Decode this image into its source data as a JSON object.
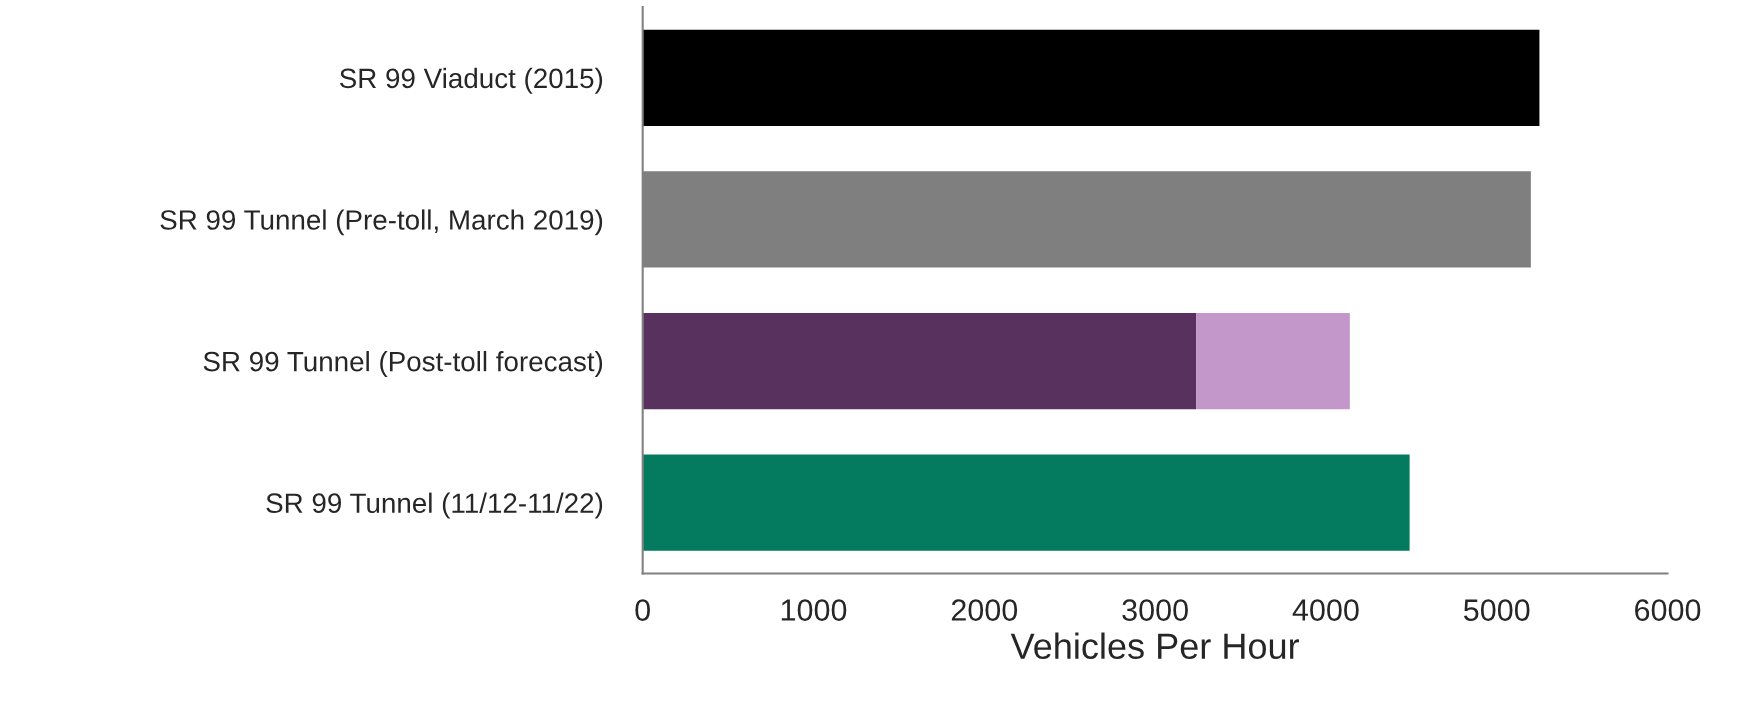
{
  "chart_data": {
    "type": "bar",
    "orientation": "horizontal",
    "stacked": true,
    "xlabel": "Vehicles Per Hour",
    "categories": [
      "SR 99 Viaduct (2015)",
      "SR 99 Tunnel (Pre-toll, March 2019)",
      "SR 99 Tunnel (Post-toll forecast)",
      "SR 99 Tunnel (11/12-11/22)"
    ],
    "series": [
      {
        "colors": [
          "#000000",
          "#7f7f7f",
          "#58315e",
          "#047a5e"
        ],
        "values": [
          5250,
          5200,
          3240,
          4490
        ]
      },
      {
        "color": "#c397c9",
        "values": [
          null,
          null,
          900,
          null
        ]
      }
    ],
    "xlim": [
      0,
      6000
    ],
    "xticks": [
      0,
      1000,
      2000,
      3000,
      4000,
      5000,
      6000
    ],
    "grid": false,
    "legend": false
  }
}
